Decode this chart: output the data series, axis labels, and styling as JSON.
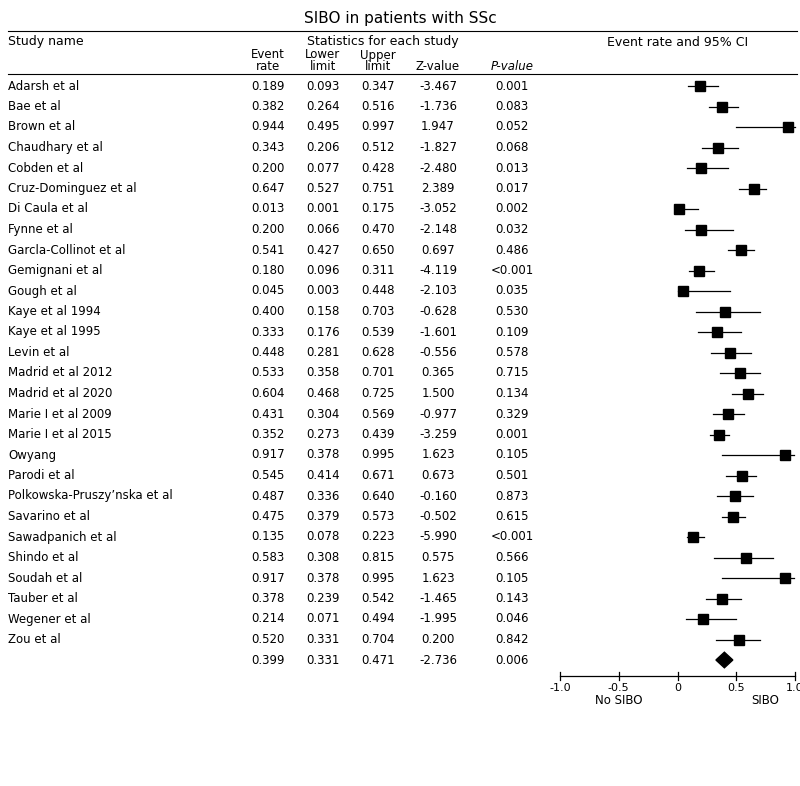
{
  "title": "SIBO in patients with SSc",
  "studies": [
    {
      "name": "Adarsh et al",
      "event": 0.189,
      "lower": 0.093,
      "upper": 0.347,
      "z": "-3.467",
      "p": "0.001",
      "is_summary": false
    },
    {
      "name": "Bae et al",
      "event": 0.382,
      "lower": 0.264,
      "upper": 0.516,
      "z": "-1.736",
      "p": "0.083",
      "is_summary": false
    },
    {
      "name": "Brown et al",
      "event": 0.944,
      "lower": 0.495,
      "upper": 0.997,
      "z": " 1.947",
      "p": "0.052",
      "is_summary": false
    },
    {
      "name": "Chaudhary et al",
      "event": 0.343,
      "lower": 0.206,
      "upper": 0.512,
      "z": "-1.827",
      "p": "0.068",
      "is_summary": false
    },
    {
      "name": "Cobden et al",
      "event": 0.2,
      "lower": 0.077,
      "upper": 0.428,
      "z": "-2.480",
      "p": "0.013",
      "is_summary": false
    },
    {
      "name": "Cruz-Dominguez et al",
      "event": 0.647,
      "lower": 0.527,
      "upper": 0.751,
      "z": " 2.389",
      "p": "0.017",
      "is_summary": false
    },
    {
      "name": "Di Caula et al",
      "event": 0.013,
      "lower": 0.001,
      "upper": 0.175,
      "z": "-3.052",
      "p": "0.002",
      "is_summary": false
    },
    {
      "name": "Fynne et al",
      "event": 0.2,
      "lower": 0.066,
      "upper": 0.47,
      "z": "-2.148",
      "p": "0.032",
      "is_summary": false
    },
    {
      "name": "Garcla-Collinot et al",
      "event": 0.541,
      "lower": 0.427,
      "upper": 0.65,
      "z": " 0.697",
      "p": "0.486",
      "is_summary": false
    },
    {
      "name": "Gemignani et al",
      "event": 0.18,
      "lower": 0.096,
      "upper": 0.311,
      "z": "-4.119",
      "p": "<0.001",
      "is_summary": false
    },
    {
      "name": "Gough et al",
      "event": 0.045,
      "lower": 0.003,
      "upper": 0.448,
      "z": "-2.103",
      "p": "0.035",
      "is_summary": false
    },
    {
      "name": "Kaye et al 1994",
      "event": 0.4,
      "lower": 0.158,
      "upper": 0.703,
      "z": "-0.628",
      "p": "0.530",
      "is_summary": false
    },
    {
      "name": "Kaye et al 1995",
      "event": 0.333,
      "lower": 0.176,
      "upper": 0.539,
      "z": "-1.601",
      "p": "0.109",
      "is_summary": false
    },
    {
      "name": "Levin et al",
      "event": 0.448,
      "lower": 0.281,
      "upper": 0.628,
      "z": "-0.556",
      "p": "0.578",
      "is_summary": false
    },
    {
      "name": "Madrid et al 2012",
      "event": 0.533,
      "lower": 0.358,
      "upper": 0.701,
      "z": " 0.365",
      "p": "0.715",
      "is_summary": false
    },
    {
      "name": "Madrid et al 2020",
      "event": 0.604,
      "lower": 0.468,
      "upper": 0.725,
      "z": " 1.500",
      "p": "0.134",
      "is_summary": false
    },
    {
      "name": "Marie I et al 2009",
      "event": 0.431,
      "lower": 0.304,
      "upper": 0.569,
      "z": "-0.977",
      "p": "0.329",
      "is_summary": false
    },
    {
      "name": "Marie I et al 2015",
      "event": 0.352,
      "lower": 0.273,
      "upper": 0.439,
      "z": "-3.259",
      "p": "0.001",
      "is_summary": false
    },
    {
      "name": "Owyang",
      "event": 0.917,
      "lower": 0.378,
      "upper": 0.995,
      "z": " 1.623",
      "p": "0.105",
      "is_summary": false
    },
    {
      "name": "Parodi et al",
      "event": 0.545,
      "lower": 0.414,
      "upper": 0.671,
      "z": " 0.673",
      "p": "0.501",
      "is_summary": false
    },
    {
      "name": "Polkowska-Pruszy’nska et al",
      "event": 0.487,
      "lower": 0.336,
      "upper": 0.64,
      "z": "-0.160",
      "p": "0.873",
      "is_summary": false
    },
    {
      "name": "Savarino et al",
      "event": 0.475,
      "lower": 0.379,
      "upper": 0.573,
      "z": "-0.502",
      "p": "0.615",
      "is_summary": false
    },
    {
      "name": "Sawadpanich et al",
      "event": 0.135,
      "lower": 0.078,
      "upper": 0.223,
      "z": "-5.990",
      "p": "<0.001",
      "is_summary": false
    },
    {
      "name": "Shindo et al",
      "event": 0.583,
      "lower": 0.308,
      "upper": 0.815,
      "z": " 0.575",
      "p": "0.566",
      "is_summary": false
    },
    {
      "name": "Soudah et al",
      "event": 0.917,
      "lower": 0.378,
      "upper": 0.995,
      "z": " 1.623",
      "p": "0.105",
      "is_summary": false
    },
    {
      "name": "Tauber et al",
      "event": 0.378,
      "lower": 0.239,
      "upper": 0.542,
      "z": "-1.465",
      "p": "0.143",
      "is_summary": false
    },
    {
      "name": "Wegener et al",
      "event": 0.214,
      "lower": 0.071,
      "upper": 0.494,
      "z": "-1.995",
      "p": "0.046",
      "is_summary": false
    },
    {
      "name": "Zou et al",
      "event": 0.52,
      "lower": 0.331,
      "upper": 0.704,
      "z": " 0.200",
      "p": "0.842",
      "is_summary": false
    },
    {
      "name": "",
      "event": 0.399,
      "lower": 0.331,
      "upper": 0.471,
      "z": "-2.736",
      "p": "0.006",
      "is_summary": true
    }
  ],
  "xmin": -1.0,
  "xmax": 1.0,
  "xticks": [
    -1.0,
    -0.5,
    0.0,
    0.5,
    1.0
  ],
  "xtick_labels": [
    "-1.0",
    "-0.5",
    "0",
    "0.5",
    "1.0"
  ],
  "xlabel_left": "No SIBO",
  "xlabel_right": "SIBO"
}
